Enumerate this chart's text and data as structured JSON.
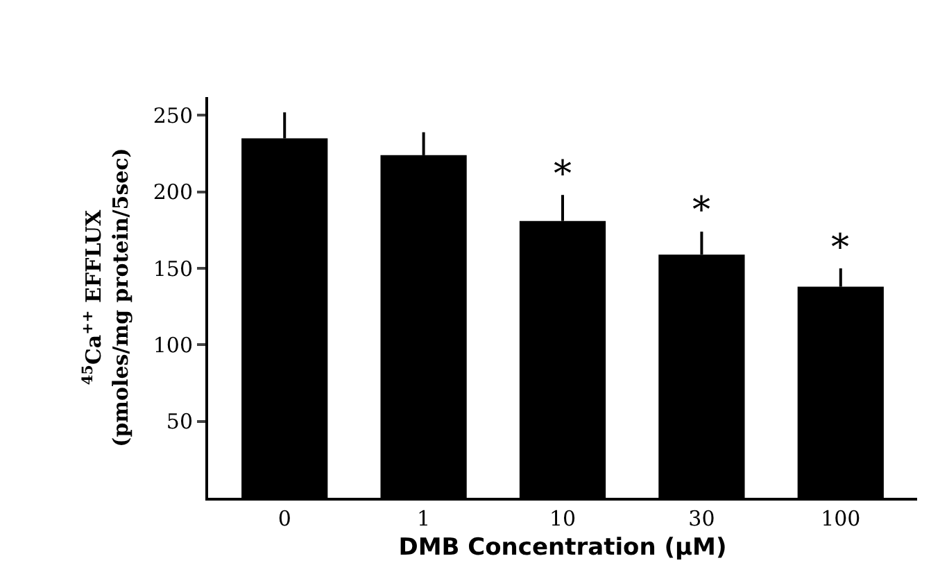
{
  "chart_data": {
    "type": "bar",
    "xlabel": "DMB Concentration (µM)",
    "ylabel": "$^{45}$Ca$^{++}$ EFFLUX\n(pmoles/mg protein/5sec)",
    "categories": [
      "0",
      "1",
      "10",
      "30",
      "100"
    ],
    "values": [
      235,
      224,
      181,
      159,
      138
    ],
    "errors": [
      [
        235,
        252
      ],
      [
        224,
        239
      ],
      [
        181,
        198
      ],
      [
        159,
        174
      ],
      [
        138,
        150
      ]
    ],
    "color": "#000000",
    "ylim": [
      0,
      262
    ],
    "yticks": [
      50,
      100,
      150,
      200,
      250
    ],
    "grid": false,
    "annotations": [
      {
        "text": "*",
        "x": "10",
        "y": 198
      },
      {
        "text": "*",
        "x": "30",
        "y": 174
      },
      {
        "text": "*",
        "x": "100",
        "y": 150
      }
    ]
  }
}
